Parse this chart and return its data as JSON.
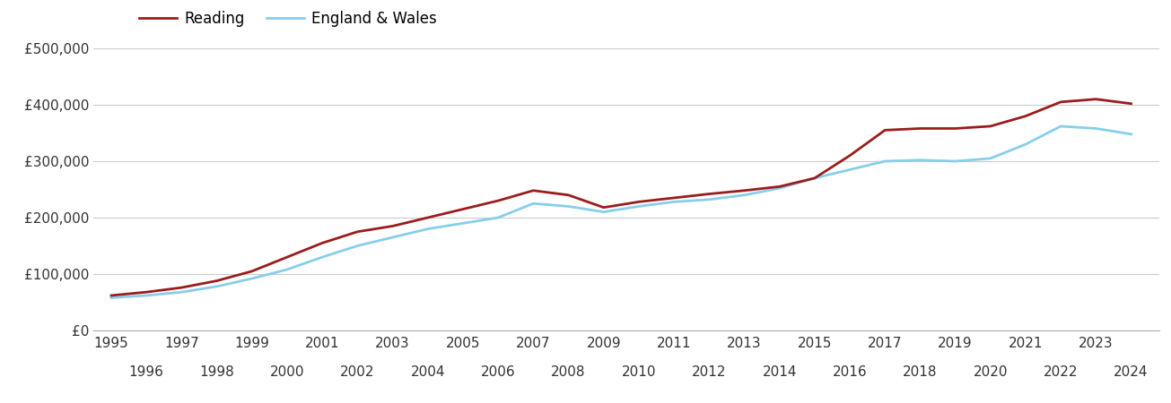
{
  "reading_years": [
    1995,
    1996,
    1997,
    1998,
    1999,
    2000,
    2001,
    2002,
    2003,
    2004,
    2005,
    2006,
    2007,
    2008,
    2009,
    2010,
    2011,
    2012,
    2013,
    2014,
    2015,
    2016,
    2017,
    2018,
    2019,
    2020,
    2021,
    2022,
    2023,
    2024
  ],
  "reading_values": [
    62000,
    68000,
    76000,
    88000,
    105000,
    130000,
    155000,
    175000,
    185000,
    200000,
    215000,
    230000,
    248000,
    240000,
    218000,
    228000,
    235000,
    242000,
    248000,
    255000,
    270000,
    310000,
    355000,
    358000,
    358000,
    362000,
    380000,
    405000,
    410000,
    402000
  ],
  "ew_years": [
    1995,
    1996,
    1997,
    1998,
    1999,
    2000,
    2001,
    2002,
    2003,
    2004,
    2005,
    2006,
    2007,
    2008,
    2009,
    2010,
    2011,
    2012,
    2013,
    2014,
    2015,
    2016,
    2017,
    2018,
    2019,
    2020,
    2021,
    2022,
    2023,
    2024
  ],
  "ew_values": [
    58000,
    62000,
    68000,
    78000,
    92000,
    108000,
    130000,
    150000,
    165000,
    180000,
    190000,
    200000,
    225000,
    220000,
    210000,
    220000,
    228000,
    232000,
    240000,
    252000,
    270000,
    285000,
    300000,
    302000,
    300000,
    305000,
    330000,
    362000,
    358000,
    348000
  ],
  "reading_color": "#9b1c1c",
  "ew_color": "#87CEEB",
  "reading_label": "Reading",
  "ew_label": "England & Wales",
  "ylim": [
    0,
    500000
  ],
  "yticks": [
    0,
    100000,
    200000,
    300000,
    400000,
    500000
  ],
  "ytick_labels": [
    "£0",
    "£100,000",
    "£200,000",
    "£300,000",
    "£400,000",
    "£500,000"
  ],
  "background_color": "#ffffff",
  "grid_color": "#cccccc",
  "line_width": 2.0,
  "legend_fontsize": 12,
  "tick_fontsize": 11,
  "xlim_left": 1994.5,
  "xlim_right": 2024.8
}
